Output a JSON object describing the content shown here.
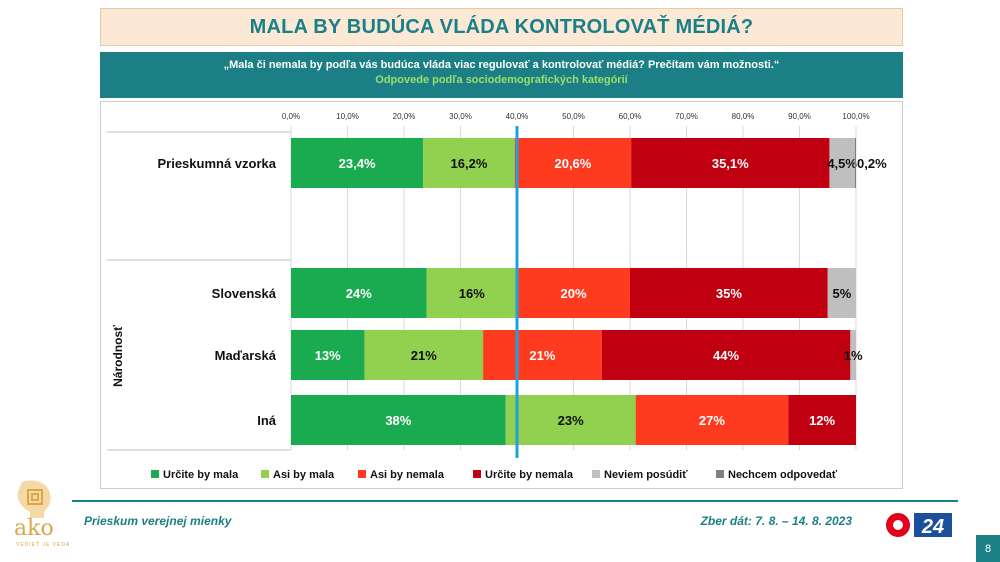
{
  "header": {
    "title": "MALA BY BUDÚCA VLÁDA KONTROLOVAŤ MÉDIÁ?",
    "question": "„Mala či nemala by podľa vás budúca vláda viac regulovať a kontrolovať médiá? Prečítam vám možnosti.“",
    "subtitle": "Odpovede podľa sociodemografických kategórií"
  },
  "chart_data": {
    "type": "bar",
    "orientation": "horizontal",
    "stacked": true,
    "xlim": [
      0,
      100
    ],
    "tick_labels": [
      "0,0%",
      "10,0%",
      "20,0%",
      "30,0%",
      "40,0%",
      "50,0%",
      "60,0%",
      "70,0%",
      "80,0%",
      "90,0%",
      "100,0%"
    ],
    "reference_line": 40,
    "group_label": "Národnosť",
    "categories": [
      "Prieskumná vzorka",
      "Slovenská",
      "Maďarská",
      "Iná"
    ],
    "series": [
      {
        "name": "Určite by mala",
        "color": "#1aaa50",
        "values": [
          23.4,
          24,
          13,
          38
        ],
        "labels": [
          "23,4%",
          "24%",
          "13%",
          "38%"
        ]
      },
      {
        "name": "Asi by mala",
        "color": "#92d050",
        "values": [
          16.2,
          16,
          21,
          23
        ],
        "labels": [
          "16,2%",
          "16%",
          "21%",
          "23%"
        ]
      },
      {
        "name": "Asi by nemala",
        "color": "#ff3b1f",
        "values": [
          20.6,
          20,
          21,
          27
        ],
        "labels": [
          "20,6%",
          "20%",
          "21%",
          "27%"
        ]
      },
      {
        "name": "Určite by nemala",
        "color": "#c00010",
        "values": [
          35.1,
          35,
          44,
          12
        ],
        "labels": [
          "35,1%",
          "35%",
          "44%",
          "12%"
        ]
      },
      {
        "name": "Neviem posúdiť",
        "color": "#bfbfbf",
        "values": [
          4.5,
          5,
          1,
          0
        ],
        "labels": [
          "4,5%",
          "5%",
          "1%",
          ""
        ]
      },
      {
        "name": "Nechcem odpovedať",
        "color": "#7f7f7f",
        "values": [
          0.2,
          0,
          0,
          0
        ],
        "labels": [
          "0,2%",
          "",
          "",
          ""
        ]
      }
    ]
  },
  "footer": {
    "survey": "Prieskum verejnej mienky",
    "date": "Zber dát: 7. 8. – 14. 8. 2023",
    "logo_text": "ako",
    "logo_sub": "VEDIEŤ JE VEDA",
    "tv_logo": "24",
    "page": "8"
  }
}
